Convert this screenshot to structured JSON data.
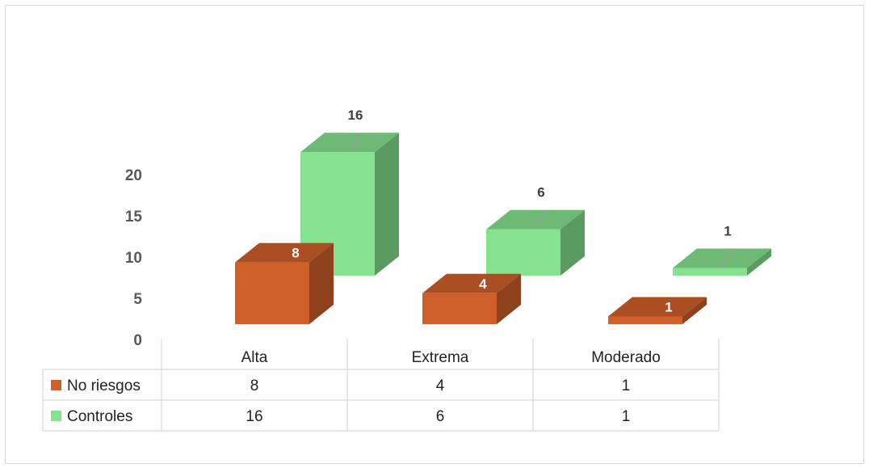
{
  "chart_data": {
    "type": "bar",
    "categories": [
      "Alta",
      "Extrema",
      "Moderado"
    ],
    "series": [
      {
        "name": "No riesgos",
        "values": [
          8,
          4,
          1
        ],
        "color": "#D0602A",
        "label_color": "#ffffff"
      },
      {
        "name": "Controles",
        "values": [
          16,
          6,
          1
        ],
        "color": "#86E28F",
        "label_color": "#404040"
      }
    ],
    "y_ticks": [
      0,
      5,
      10,
      15,
      20
    ],
    "ylim": [
      0,
      20
    ],
    "grid": false,
    "legend": "data-table"
  }
}
